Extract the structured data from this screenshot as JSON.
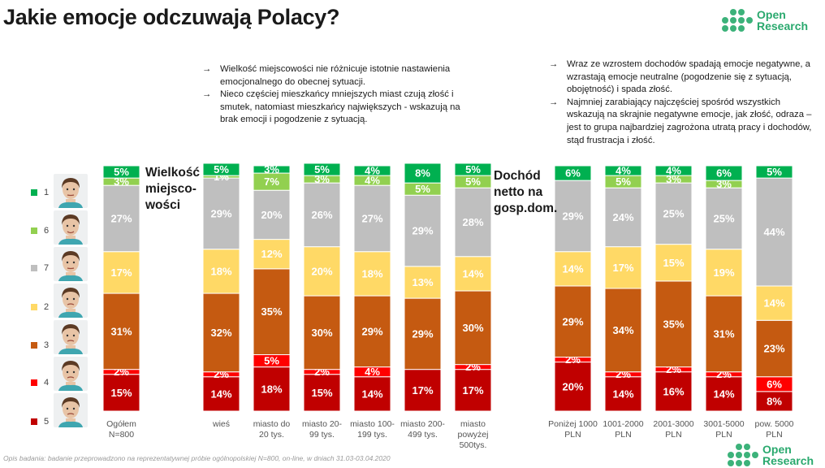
{
  "title": "Jakie emocje odczuwają Polacy?",
  "logo": {
    "line1": "Open",
    "line2": "Research"
  },
  "notes_left": [
    "Wielkość miejscowości nie różnicuje istotnie nastawienia emocjonalnego do obecnej sytuacji.",
    "Nieco częściej mieszkańcy mniejszych miast czują złość i smutek, natomiast mieszkańcy największych -  wskazują na brak emocji i pogodzenie z sytuacją."
  ],
  "notes_right": [
    "Wraz ze wzrostem dochodów spadają emocje negatywne, a wzrastają emocje neutralne (pogodzenie się z sytuacją, obojętność) i spada złość.",
    "Najmniej zarabiający najczęściej spośród wszystkich wskazują na skrajnie negatywne emocje, jak złość, odraza – jest to grupa najbardziej zagrożona utratą pracy i dochodów, stąd frustracja i złość."
  ],
  "section_labels": {
    "size": "Wielkość miejsco-wości",
    "income": "Dochód netto na gosp.dom."
  },
  "footnote": "Opis badania: badanie przeprowadzono na reprezentatywnej próbie ogólnopolskiej N=800, on-line, w dniach 31.03-03.04.2020",
  "faces": [
    "neutral-smile-face",
    "happy-face",
    "calm-face",
    "sad-face",
    "angry-face",
    "upset-face",
    "disgusted-face"
  ],
  "chart_data": {
    "type": "bar",
    "stacked": true,
    "normalized": true,
    "unit": "%",
    "ylim": [
      0,
      100
    ],
    "series_order_bottom_to_top": [
      "5",
      "4",
      "3",
      "2",
      "7",
      "6",
      "1"
    ],
    "series": [
      {
        "name": "5",
        "color": "#c00000"
      },
      {
        "name": "4",
        "color": "#ff0000"
      },
      {
        "name": "3",
        "color": "#c55a11"
      },
      {
        "name": "2",
        "color": "#ffd966"
      },
      {
        "name": "7",
        "color": "#bfbfbf"
      },
      {
        "name": "6",
        "color": "#92d050"
      },
      {
        "name": "1",
        "color": "#00b050"
      }
    ],
    "legend": [
      {
        "label": "1",
        "color": "#00b050"
      },
      {
        "label": "6",
        "color": "#92d050"
      },
      {
        "label": "7",
        "color": "#bfbfbf"
      },
      {
        "label": "2",
        "color": "#ffd966"
      },
      {
        "label": "3",
        "color": "#c55a11"
      },
      {
        "label": "4",
        "color": "#ff0000"
      },
      {
        "label": "5",
        "color": "#c00000"
      }
    ],
    "categories": [
      "Ogółem N=800",
      "wieś",
      "miasto do 20 tys.",
      "miasto 20-99 tys.",
      "miasto 100-199 tys.",
      "miasto 200-499 tys.",
      "miasto powyżej 500tys.",
      "Poniżej 1000 PLN",
      "1001-2000 PLN",
      "2001-3000 PLN",
      "3001-5000 PLN",
      "pow. 5000 PLN"
    ],
    "category_label_lines": [
      [
        "Ogółem",
        "N=800"
      ],
      [
        "wieś"
      ],
      [
        "miasto do",
        "20 tys."
      ],
      [
        "miasto 20-",
        "99 tys."
      ],
      [
        "miasto 100-",
        "199 tys."
      ],
      [
        "miasto 200-",
        "499 tys."
      ],
      [
        "miasto",
        "powyżej",
        "500tys."
      ],
      [
        "Poniżej 1000",
        "PLN"
      ],
      [
        "1001-2000",
        "PLN"
      ],
      [
        "2001-3000",
        "PLN"
      ],
      [
        "3001-5000",
        "PLN"
      ],
      [
        "pow. 5000",
        "PLN"
      ]
    ],
    "values": [
      [
        15,
        2,
        31,
        17,
        27,
        3,
        5
      ],
      [
        14,
        2,
        32,
        18,
        29,
        1,
        5
      ],
      [
        18,
        5,
        35,
        12,
        20,
        7,
        3
      ],
      [
        15,
        2,
        30,
        20,
        26,
        3,
        5
      ],
      [
        14,
        4,
        29,
        18,
        27,
        4,
        4
      ],
      [
        17,
        0,
        29,
        13,
        29,
        5,
        8
      ],
      [
        17,
        2,
        30,
        14,
        28,
        5,
        5
      ],
      [
        20,
        2,
        29,
        14,
        29,
        0,
        6
      ],
      [
        14,
        2,
        34,
        17,
        24,
        5,
        4
      ],
      [
        16,
        2,
        35,
        15,
        25,
        3,
        4
      ],
      [
        14,
        2,
        31,
        19,
        25,
        3,
        6
      ],
      [
        8,
        6,
        23,
        14,
        44,
        0,
        5
      ]
    ]
  }
}
